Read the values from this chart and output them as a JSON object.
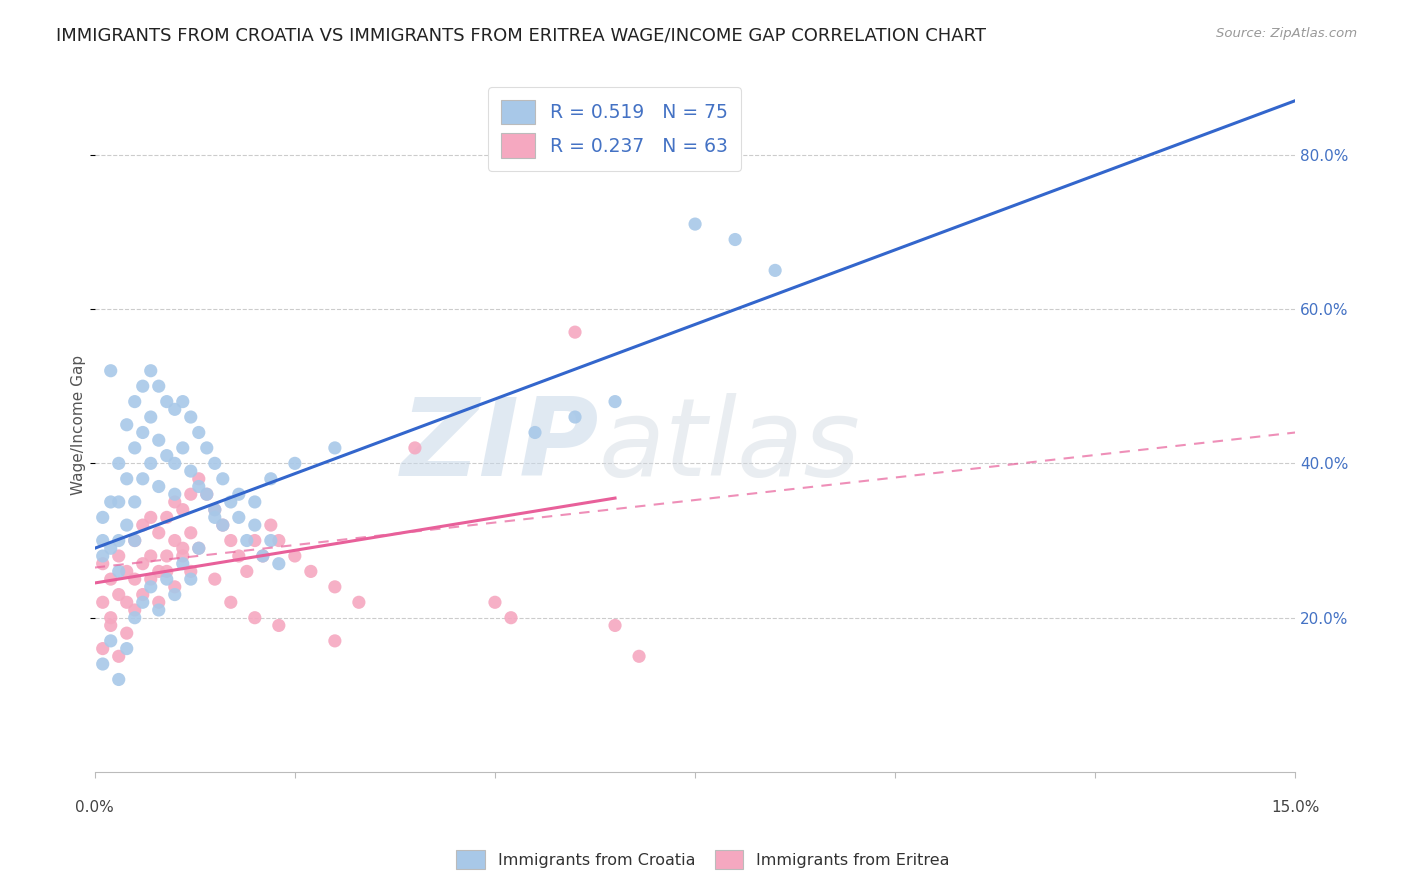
{
  "title": "IMMIGRANTS FROM CROATIA VS IMMIGRANTS FROM ERITREA WAGE/INCOME GAP CORRELATION CHART",
  "source": "Source: ZipAtlas.com",
  "ylabel": "Wage/Income Gap",
  "xlim": [
    0.0,
    0.15
  ],
  "ylim": [
    0.0,
    0.9
  ],
  "yticks": [
    0.2,
    0.4,
    0.6,
    0.8
  ],
  "ytick_labels": [
    "20.0%",
    "40.0%",
    "60.0%",
    "80.0%"
  ],
  "croatia_color": "#a8c8e8",
  "eritrea_color": "#f5a8c0",
  "croatia_line_color": "#3366cc",
  "eritrea_line_color": "#e8609a",
  "R_croatia": 0.519,
  "N_croatia": 75,
  "R_eritrea": 0.237,
  "N_eritrea": 63,
  "watermark_zip": "ZIP",
  "watermark_atlas": "atlas",
  "legend_label_croatia": "Immigrants from Croatia",
  "legend_label_eritrea": "Immigrants from Eritrea",
  "title_fontsize": 13,
  "axis_label_fontsize": 11,
  "tick_fontsize": 11,
  "croatia_scatter_x": [
    0.001,
    0.001,
    0.001,
    0.002,
    0.002,
    0.002,
    0.003,
    0.003,
    0.003,
    0.003,
    0.004,
    0.004,
    0.004,
    0.005,
    0.005,
    0.005,
    0.005,
    0.006,
    0.006,
    0.006,
    0.007,
    0.007,
    0.007,
    0.008,
    0.008,
    0.008,
    0.009,
    0.009,
    0.01,
    0.01,
    0.01,
    0.011,
    0.011,
    0.012,
    0.012,
    0.013,
    0.013,
    0.014,
    0.014,
    0.015,
    0.015,
    0.016,
    0.016,
    0.017,
    0.018,
    0.019,
    0.02,
    0.021,
    0.022,
    0.023,
    0.001,
    0.002,
    0.003,
    0.004,
    0.005,
    0.006,
    0.007,
    0.008,
    0.009,
    0.01,
    0.011,
    0.012,
    0.013,
    0.015,
    0.018,
    0.02,
    0.022,
    0.025,
    0.03,
    0.055,
    0.06,
    0.065,
    0.075,
    0.08,
    0.085
  ],
  "croatia_scatter_y": [
    0.3,
    0.33,
    0.28,
    0.52,
    0.35,
    0.29,
    0.4,
    0.35,
    0.3,
    0.26,
    0.45,
    0.38,
    0.32,
    0.48,
    0.42,
    0.35,
    0.3,
    0.5,
    0.44,
    0.38,
    0.52,
    0.46,
    0.4,
    0.5,
    0.43,
    0.37,
    0.48,
    0.41,
    0.47,
    0.4,
    0.36,
    0.48,
    0.42,
    0.46,
    0.39,
    0.44,
    0.37,
    0.42,
    0.36,
    0.4,
    0.34,
    0.38,
    0.32,
    0.35,
    0.33,
    0.3,
    0.32,
    0.28,
    0.3,
    0.27,
    0.14,
    0.17,
    0.12,
    0.16,
    0.2,
    0.22,
    0.24,
    0.21,
    0.25,
    0.23,
    0.27,
    0.25,
    0.29,
    0.33,
    0.36,
    0.35,
    0.38,
    0.4,
    0.42,
    0.44,
    0.46,
    0.48,
    0.71,
    0.69,
    0.65
  ],
  "eritrea_scatter_x": [
    0.001,
    0.001,
    0.002,
    0.002,
    0.003,
    0.003,
    0.004,
    0.004,
    0.005,
    0.005,
    0.006,
    0.006,
    0.007,
    0.007,
    0.008,
    0.008,
    0.009,
    0.009,
    0.01,
    0.01,
    0.011,
    0.011,
    0.012,
    0.012,
    0.013,
    0.014,
    0.015,
    0.016,
    0.017,
    0.018,
    0.019,
    0.02,
    0.021,
    0.022,
    0.023,
    0.025,
    0.027,
    0.03,
    0.033,
    0.001,
    0.002,
    0.003,
    0.004,
    0.005,
    0.006,
    0.007,
    0.008,
    0.009,
    0.01,
    0.011,
    0.012,
    0.013,
    0.015,
    0.017,
    0.02,
    0.023,
    0.03,
    0.04,
    0.05,
    0.052,
    0.06,
    0.065,
    0.068
  ],
  "eritrea_scatter_y": [
    0.27,
    0.22,
    0.25,
    0.2,
    0.28,
    0.23,
    0.26,
    0.22,
    0.3,
    0.25,
    0.32,
    0.27,
    0.33,
    0.28,
    0.31,
    0.26,
    0.33,
    0.28,
    0.35,
    0.3,
    0.34,
    0.29,
    0.36,
    0.31,
    0.38,
    0.36,
    0.34,
    0.32,
    0.3,
    0.28,
    0.26,
    0.3,
    0.28,
    0.32,
    0.3,
    0.28,
    0.26,
    0.24,
    0.22,
    0.16,
    0.19,
    0.15,
    0.18,
    0.21,
    0.23,
    0.25,
    0.22,
    0.26,
    0.24,
    0.28,
    0.26,
    0.29,
    0.25,
    0.22,
    0.2,
    0.19,
    0.17,
    0.42,
    0.22,
    0.2,
    0.57,
    0.19,
    0.15
  ],
  "croatia_line_x": [
    0.0,
    0.15
  ],
  "croatia_line_y": [
    0.29,
    0.87
  ],
  "eritrea_solid_line_x": [
    0.0,
    0.065
  ],
  "eritrea_solid_line_y": [
    0.245,
    0.355
  ],
  "eritrea_dashed_line_x": [
    0.0,
    0.15
  ],
  "eritrea_dashed_line_y": [
    0.265,
    0.44
  ]
}
